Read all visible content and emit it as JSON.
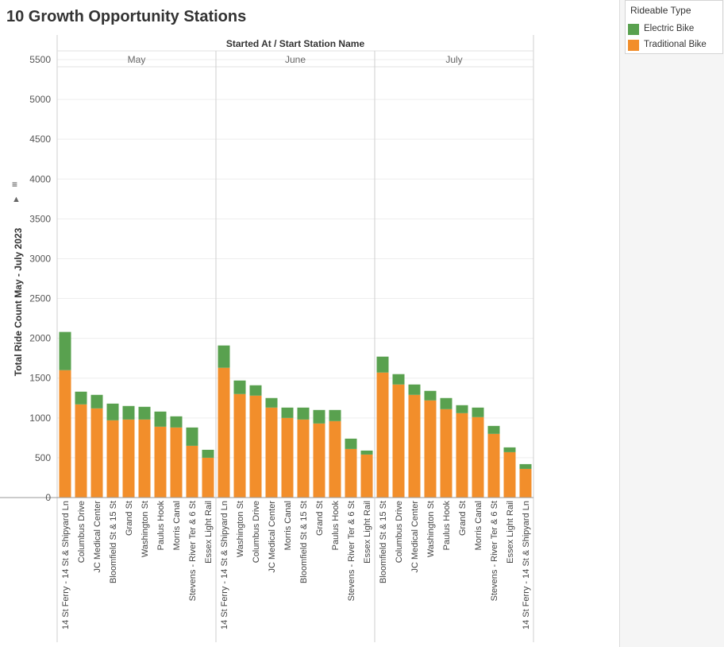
{
  "title": "10 Growth Opportunity Stations",
  "colors": {
    "electric": "#59a14f",
    "traditional": "#f28e2b"
  },
  "legend": {
    "title": "Rideable Type",
    "items": [
      {
        "label": "Electric Bike",
        "color": "#59a14f"
      },
      {
        "label": "Traditional Bike",
        "color": "#f28e2b"
      }
    ]
  },
  "chart_data": {
    "type": "bar",
    "stacked": true,
    "header": "Started At  /  Start Station Name",
    "ylabel": "Total Ride Count May - July 2023",
    "ylim": [
      0,
      5500
    ],
    "yticks": [
      0,
      500,
      1000,
      1500,
      2000,
      2500,
      3000,
      3500,
      4000,
      4500,
      5000,
      5500
    ],
    "grid": true,
    "legend_position": "top-right",
    "series_names": [
      "Traditional Bike",
      "Electric Bike"
    ],
    "panels": [
      {
        "label": "May",
        "stations": [
          "14 St Ferry - 14 St & Shipyard Ln",
          "Columbus Drive",
          "JC Medical Center",
          "Bloomfield St & 15 St",
          "Grand St",
          "Washington St",
          "Paulus Hook",
          "Morris Canal",
          "Stevens - River Ter & 6 St",
          "Essex Light Rail"
        ],
        "traditional": [
          1600,
          1170,
          1120,
          970,
          980,
          980,
          890,
          880,
          650,
          500
        ],
        "electric": [
          480,
          160,
          170,
          210,
          170,
          160,
          190,
          140,
          230,
          100
        ]
      },
      {
        "label": "June",
        "stations": [
          "14 St Ferry - 14 St & Shipyard Ln",
          "Washington St",
          "Columbus Drive",
          "JC Medical Center",
          "Morris Canal",
          "Bloomfield St & 15 St",
          "Grand St",
          "Paulus Hook",
          "Stevens - River Ter & 6 St",
          "Essex Light Rail"
        ],
        "traditional": [
          1630,
          1300,
          1280,
          1130,
          1000,
          980,
          930,
          960,
          610,
          540
        ],
        "electric": [
          280,
          170,
          130,
          120,
          130,
          150,
          170,
          140,
          130,
          50
        ]
      },
      {
        "label": "July",
        "stations": [
          "Bloomfield St & 15 St",
          "Columbus Drive",
          "JC Medical Center",
          "Washington St",
          "Paulus Hook",
          "Grand St",
          "Morris Canal",
          "Stevens - River Ter & 6 St",
          "Essex Light Rail",
          "14 St Ferry - 14 St & Shipyard Ln"
        ],
        "traditional": [
          1570,
          1420,
          1290,
          1220,
          1110,
          1060,
          1010,
          800,
          570,
          360
        ],
        "electric": [
          200,
          130,
          130,
          120,
          140,
          100,
          120,
          100,
          60,
          60
        ]
      }
    ]
  }
}
